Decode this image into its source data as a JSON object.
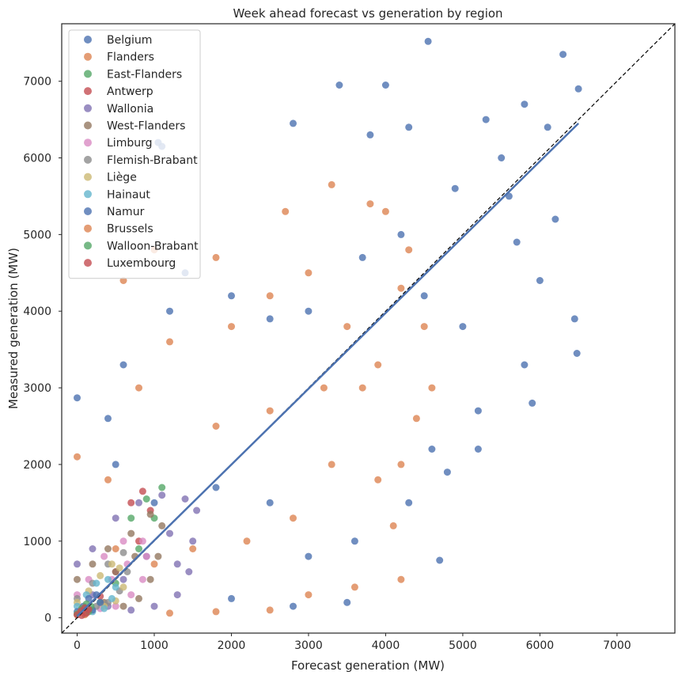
{
  "chart_data": {
    "type": "scatter",
    "title": "Week ahead forecast vs generation by region",
    "xlabel": "Forecast generation (MW)",
    "ylabel": "Measured generation (MW)",
    "xlim": [
      -200,
      7750
    ],
    "ylim": [
      -200,
      7750
    ],
    "xticks": [
      0,
      1000,
      2000,
      3000,
      4000,
      5000,
      6000,
      7000
    ],
    "yticks": [
      0,
      1000,
      2000,
      3000,
      4000,
      5000,
      6000,
      7000
    ],
    "grid": false,
    "legend_position": "top-left",
    "reference_line": "y = x (dashed)",
    "series": [
      {
        "name": "Belgium",
        "color": "#4c72b0",
        "points": [
          [
            0,
            2870
          ],
          [
            1050,
            6200
          ],
          [
            1100,
            6150
          ],
          [
            4550,
            7520
          ],
          [
            6300,
            7350
          ],
          [
            6500,
            6900
          ],
          [
            6480,
            3450
          ],
          [
            6450,
            3900
          ],
          [
            5000,
            3800
          ],
          [
            4700,
            750
          ],
          [
            4300,
            1500
          ],
          [
            3500,
            200
          ],
          [
            2800,
            150
          ],
          [
            2000,
            250
          ],
          [
            4000,
            6950
          ],
          [
            3400,
            6950
          ],
          [
            2800,
            6450
          ],
          [
            5300,
            6500
          ],
          [
            5800,
            6700
          ],
          [
            6100,
            6400
          ],
          [
            5500,
            6000
          ],
          [
            4500,
            4200
          ],
          [
            4200,
            5000
          ],
          [
            3700,
            4700
          ],
          [
            3000,
            4000
          ],
          [
            2500,
            3900
          ],
          [
            2000,
            4200
          ],
          [
            1400,
            4500
          ],
          [
            1200,
            4000
          ],
          [
            600,
            3300
          ],
          [
            400,
            2600
          ],
          [
            500,
            2000
          ],
          [
            1000,
            1500
          ],
          [
            1800,
            1700
          ],
          [
            2500,
            1500
          ],
          [
            3000,
            800
          ],
          [
            3600,
            1000
          ],
          [
            4600,
            2200
          ],
          [
            5200,
            2700
          ],
          [
            5800,
            3300
          ],
          [
            6000,
            4400
          ],
          [
            5700,
            4900
          ],
          [
            4900,
            5600
          ],
          [
            4300,
            6400
          ],
          [
            3800,
            6300
          ],
          [
            5600,
            5500
          ],
          [
            6200,
            5200
          ],
          [
            5900,
            2800
          ],
          [
            5200,
            2200
          ],
          [
            4800,
            1900
          ]
        ]
      },
      {
        "name": "Flanders",
        "color": "#dd8452",
        "points": [
          [
            0,
            2100
          ],
          [
            600,
            4400
          ],
          [
            1000,
            4800
          ],
          [
            1800,
            4700
          ],
          [
            2700,
            5300
          ],
          [
            3300,
            5650
          ],
          [
            3800,
            5400
          ],
          [
            4000,
            5300
          ],
          [
            4300,
            4800
          ],
          [
            4200,
            4300
          ],
          [
            4500,
            3800
          ],
          [
            4600,
            3000
          ],
          [
            4200,
            2000
          ],
          [
            4100,
            1200
          ],
          [
            4200,
            500
          ],
          [
            3600,
            400
          ],
          [
            3000,
            300
          ],
          [
            2500,
            100
          ],
          [
            1800,
            80
          ],
          [
            1200,
            60
          ],
          [
            500,
            900
          ],
          [
            400,
            1800
          ],
          [
            800,
            3000
          ],
          [
            1200,
            3600
          ],
          [
            2000,
            3800
          ],
          [
            2500,
            4200
          ],
          [
            3000,
            4500
          ],
          [
            3500,
            3800
          ],
          [
            3700,
            3000
          ],
          [
            3300,
            2000
          ],
          [
            2800,
            1300
          ],
          [
            2200,
            1000
          ],
          [
            1500,
            900
          ],
          [
            1000,
            700
          ],
          [
            1800,
            2500
          ],
          [
            2500,
            2700
          ],
          [
            3200,
            3000
          ],
          [
            3900,
            3300
          ],
          [
            4400,
            2600
          ],
          [
            3900,
            1800
          ]
        ]
      },
      {
        "name": "East-Flanders",
        "color": "#55a868",
        "points": [
          [
            100,
            50
          ],
          [
            300,
            200
          ],
          [
            500,
            450
          ],
          [
            800,
            900
          ],
          [
            1000,
            1300
          ],
          [
            1100,
            1700
          ],
          [
            900,
            1550
          ],
          [
            700,
            1300
          ]
        ]
      },
      {
        "name": "Antwerp",
        "color": "#c44e52",
        "points": [
          [
            100,
            60
          ],
          [
            300,
            280
          ],
          [
            500,
            600
          ],
          [
            800,
            1000
          ],
          [
            950,
            1400
          ],
          [
            850,
            1650
          ],
          [
            700,
            1500
          ]
        ]
      },
      {
        "name": "Wallonia",
        "color": "#8172b3",
        "points": [
          [
            0,
            700
          ],
          [
            200,
            900
          ],
          [
            500,
            1300
          ],
          [
            800,
            1500
          ],
          [
            1100,
            1600
          ],
          [
            1400,
            1550
          ],
          [
            1550,
            1400
          ],
          [
            1500,
            1000
          ],
          [
            1450,
            600
          ],
          [
            1300,
            300
          ],
          [
            1000,
            150
          ],
          [
            700,
            100
          ],
          [
            400,
            150
          ],
          [
            200,
            300
          ],
          [
            600,
            500
          ],
          [
            900,
            800
          ],
          [
            1200,
            1100
          ],
          [
            1300,
            700
          ]
        ]
      },
      {
        "name": "West-Flanders",
        "color": "#937860",
        "points": [
          [
            0,
            500
          ],
          [
            200,
            700
          ],
          [
            400,
            900
          ],
          [
            700,
            1100
          ],
          [
            950,
            1350
          ],
          [
            1100,
            1200
          ],
          [
            1050,
            800
          ],
          [
            950,
            500
          ],
          [
            800,
            250
          ],
          [
            600,
            150
          ],
          [
            350,
            200
          ],
          [
            500,
            600
          ],
          [
            750,
            800
          ]
        ]
      },
      {
        "name": "Limburg",
        "color": "#da8bc3",
        "points": [
          [
            0,
            300
          ],
          [
            150,
            500
          ],
          [
            350,
            800
          ],
          [
            600,
            1000
          ],
          [
            850,
            1000
          ],
          [
            900,
            800
          ],
          [
            850,
            500
          ],
          [
            700,
            300
          ],
          [
            500,
            150
          ],
          [
            300,
            120
          ],
          [
            450,
            500
          ],
          [
            650,
            700
          ]
        ]
      },
      {
        "name": "Flemish-Brabant",
        "color": "#8c8c8c",
        "points": [
          [
            0,
            250
          ],
          [
            200,
            450
          ],
          [
            400,
            700
          ],
          [
            600,
            850
          ],
          [
            650,
            600
          ],
          [
            550,
            350
          ],
          [
            400,
            200
          ],
          [
            250,
            150
          ]
        ]
      },
      {
        "name": "Liège",
        "color": "#ccb974",
        "points": [
          [
            0,
            200
          ],
          [
            150,
            350
          ],
          [
            300,
            550
          ],
          [
            450,
            700
          ],
          [
            550,
            650
          ],
          [
            600,
            400
          ],
          [
            500,
            220
          ],
          [
            350,
            150
          ]
        ]
      },
      {
        "name": "Hainaut",
        "color": "#64b5cd",
        "points": [
          [
            0,
            150
          ],
          [
            120,
            300
          ],
          [
            250,
            450
          ],
          [
            400,
            500
          ],
          [
            500,
            400
          ],
          [
            450,
            250
          ],
          [
            350,
            120
          ],
          [
            200,
            80
          ]
        ]
      },
      {
        "name": "Namur",
        "color": "#4c72b0",
        "points": [
          [
            0,
            80
          ],
          [
            80,
            150
          ],
          [
            150,
            250
          ],
          [
            250,
            300
          ],
          [
            300,
            200
          ],
          [
            200,
            100
          ]
        ]
      },
      {
        "name": "Brussels",
        "color": "#dd8452",
        "points": [
          [
            0,
            40
          ],
          [
            40,
            70
          ],
          [
            80,
            100
          ],
          [
            120,
            80
          ],
          [
            100,
            40
          ]
        ]
      },
      {
        "name": "Walloon-Brabant",
        "color": "#55a868",
        "points": [
          [
            0,
            50
          ],
          [
            60,
            120
          ],
          [
            120,
            180
          ],
          [
            180,
            150
          ],
          [
            150,
            80
          ]
        ]
      },
      {
        "name": "Luxembourg",
        "color": "#c44e52",
        "points": [
          [
            0,
            40
          ],
          [
            50,
            90
          ],
          [
            100,
            130
          ],
          [
            150,
            110
          ],
          [
            120,
            60
          ],
          [
            60,
            30
          ]
        ]
      }
    ],
    "trend_line": {
      "series": "Belgium",
      "color": "#4c72b0",
      "points": [
        [
          0,
          20
        ],
        [
          6500,
          6450
        ]
      ]
    }
  }
}
